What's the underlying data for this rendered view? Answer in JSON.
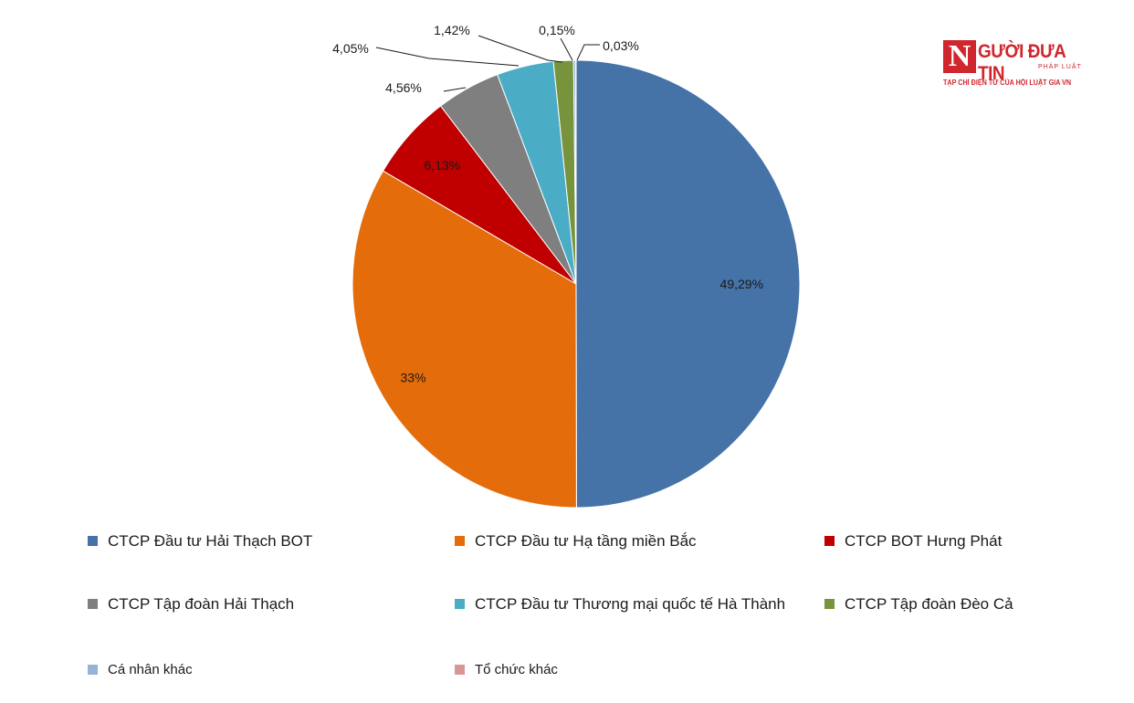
{
  "chart_data": {
    "type": "pie",
    "title": "",
    "start_angle_deg": 0,
    "direction": "clockwise",
    "legend_position": "bottom",
    "slices": [
      {
        "name": "CTCP Đầu tư Hải Thạch BOT",
        "value": 49.29,
        "label": "49,29%",
        "color": "#4572a7"
      },
      {
        "name": "CTCP Đầu tư Hạ tầng miền Bắc",
        "value": 33,
        "label": "33%",
        "color": "#e46c0a"
      },
      {
        "name": "CTCP BOT Hưng Phát",
        "value": 6.13,
        "label": "6,13%",
        "color": "#c00000"
      },
      {
        "name": "CTCP Tập đoàn Hải Thạch",
        "value": 4.56,
        "label": "4,56%",
        "color": "#7f7f7f"
      },
      {
        "name": "CTCP Đầu tư Thương mại quốc tế Hà Thành",
        "value": 4.05,
        "label": "4,05%",
        "color": "#4bacc6"
      },
      {
        "name": "CTCP Tập đoàn Đèo Cả",
        "value": 1.42,
        "label": "1,42%",
        "color": "#77933c"
      },
      {
        "name": "Cá nhân khác",
        "value": 0.15,
        "label": "0,15%",
        "color": "#95b3d7"
      },
      {
        "name": "Tổ chức khác",
        "value": 0.03,
        "label": "0,03%",
        "color": "#d99694"
      }
    ]
  },
  "logo": {
    "mark": "N",
    "name": "GƯỜI ĐƯA TIN",
    "subname": "PHÁP LUẬT",
    "tagline": "TẠP CHÍ ĐIỆN TỬ CỦA HỘI LUẬT GIA VN"
  }
}
